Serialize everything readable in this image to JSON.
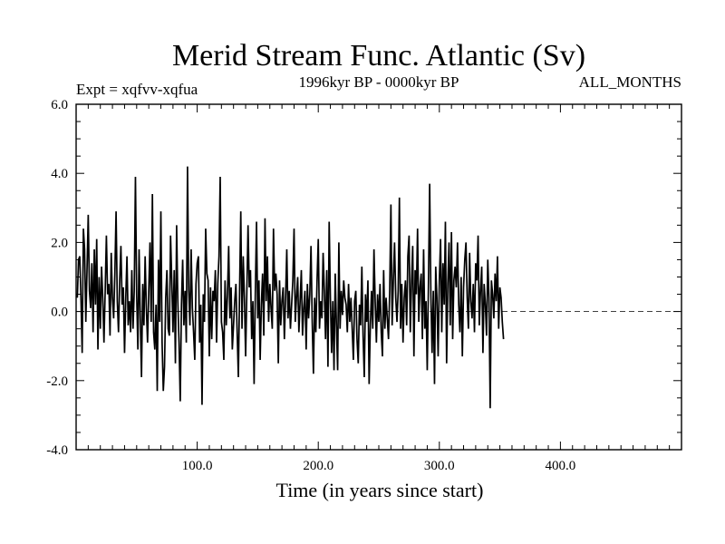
{
  "chart_data": {
    "type": "line",
    "title": "Merid Stream Func. Atlantic (Sv)",
    "subtitle": "1996kyr BP - 0000kyr BP",
    "left_note": "Expt = xqfvv-xqfua",
    "right_note": "ALL_MONTHS",
    "xlabel": "Time (in years since start)",
    "ylabel": "",
    "xlim": [
      0,
      500
    ],
    "ylim": [
      -4.0,
      6.0
    ],
    "xticks": [
      100,
      200,
      300,
      400
    ],
    "xtick_labels": [
      "100.0",
      "200.0",
      "300.0",
      "400.0"
    ],
    "yticks": [
      6,
      4,
      2,
      0,
      -2,
      -4
    ],
    "ytick_labels": [
      "6.0",
      "4.0",
      "2.0",
      "0.0",
      "-2.0",
      "-4.0"
    ],
    "reference_line": {
      "y": 0,
      "style": "dashed"
    },
    "series": [
      {
        "name": "xqfvv-xqfua",
        "x_start": 1,
        "x_step": 1,
        "values": [
          0.4,
          1.5,
          1.6,
          0.4,
          -1.2,
          2.4,
          1.8,
          -0.3,
          1.2,
          2.8,
          0.6,
          0.1,
          1.4,
          -0.6,
          1.8,
          0.2,
          2.1,
          -1.1,
          1.0,
          -0.5,
          1.3,
          0.4,
          -0.9,
          0.6,
          2.2,
          0.5,
          0.8,
          -0.7,
          1.7,
          0.4,
          -0.2,
          1.1,
          2.9,
          0.3,
          -0.6,
          0.9,
          1.9,
          0.2,
          0.7,
          -1.2,
          0.4,
          1.6,
          -0.4,
          0.3,
          -0.6,
          1.2,
          -0.5,
          0.6,
          3.9,
          0.5,
          -1.1,
          1.8,
          -0.2,
          -1.9,
          0.8,
          -0.4,
          1.6,
          0.1,
          -0.9,
          0.6,
          2.0,
          -0.3,
          3.4,
          -0.6,
          -1.1,
          0.2,
          -2.3,
          1.5,
          -0.3,
          2.9,
          -0.9,
          -2.3,
          -1.6,
          0.4,
          1.2,
          -0.5,
          -0.7,
          2.2,
          0.9,
          -0.6,
          1.2,
          -1.5,
          2.5,
          0.3,
          -0.9,
          -2.6,
          0.2,
          1.5,
          -0.4,
          0.6,
          -0.9,
          4.2,
          0.6,
          -0.4,
          1.8,
          0.1,
          -0.6,
          -1.4,
          0.8,
          1.4,
          1.6,
          -0.9,
          0.2,
          -2.7,
          0.5,
          -0.3,
          2.4,
          1.1,
          0.9,
          -1.3,
          0.7,
          -0.8,
          0.6,
          0.3,
          1.2,
          -0.9,
          0.8,
          1.6,
          3.9,
          -0.3,
          -0.6,
          -1.4,
          0.9,
          -0.4,
          0.5,
          1.9,
          -0.2,
          0.7,
          -1.1,
          -0.4,
          0.3,
          0.8,
          -0.6,
          -1.9,
          0.6,
          2.9,
          -0.5,
          1.6,
          0.4,
          -1.3,
          0.6,
          2.5,
          0.7,
          1.2,
          -0.8,
          0.3,
          -2.1,
          0.5,
          2.6,
          -0.2,
          0.9,
          -1.4,
          0.2,
          1.1,
          -0.7,
          2.7,
          0.3,
          1.6,
          -0.3,
          0.8,
          0.1,
          -0.5,
          2.4,
          0.6,
          1.1,
          0.5,
          -1.5,
          0.9,
          -0.4,
          0.3,
          0.7,
          -0.8,
          0.4,
          1.8,
          -0.2,
          0.6,
          -0.5,
          0.2,
          0.9,
          2.4,
          -0.3,
          0.4,
          1.0,
          -0.6,
          0.3,
          1.2,
          -0.7,
          0.1,
          0.6,
          -1.1,
          0.8,
          -0.2,
          0.5,
          1.9,
          -0.3,
          -1.8,
          0.4,
          -0.6,
          0.9,
          2.1,
          -0.5,
          0.3,
          -0.2,
          1.7,
          0.6,
          -0.8,
          1.2,
          -1.6,
          2.6,
          0.4,
          -1.2,
          0.3,
          -1.7,
          1.1,
          -0.4,
          -1.7,
          2.0,
          -0.5,
          0.6,
          -0.1,
          0.9,
          0.4,
          0.2,
          -0.6,
          0.8,
          -0.3,
          0.4,
          -0.5,
          -1.4,
          0.3,
          0.6,
          -0.8,
          -1.5,
          0.2,
          -0.4,
          1.3,
          -0.7,
          -1.9,
          0.5,
          -0.3,
          0.9,
          -2.1,
          -0.4,
          0.6,
          -0.5,
          1.8,
          0.3,
          -0.9,
          0.5,
          -0.3,
          0.8,
          -0.6,
          -1.3,
          1.2,
          -0.5,
          0.4,
          -0.2,
          -0.8,
          0.6,
          3.1,
          -0.4,
          0.9,
          2.0,
          0.4,
          -0.3,
          0.6,
          3.3,
          -0.5,
          0.8,
          -0.9,
          0.4,
          0.9,
          -0.4,
          1.6,
          2.2,
          -0.6,
          0.8,
          1.9,
          -1.3,
          1.2,
          0.5,
          2.4,
          -0.3,
          0.7,
          1.1,
          -0.8,
          1.8,
          -0.5,
          0.3,
          -1.7,
          0.8,
          3.7,
          0.5,
          -1.2,
          0.6,
          -2.1,
          1.3,
          0.4,
          -1.3,
          0.9,
          2.1,
          -0.6,
          1.4,
          0.2,
          2.6,
          -1.5,
          0.8,
          2.0,
          -0.4,
          2.3,
          -0.8,
          0.9,
          1.3,
          0.7,
          2.0,
          0.2,
          -0.6,
          1.0,
          -1.3,
          0.7,
          1.5,
          2.0,
          0.4,
          -0.5,
          1.7,
          0.3,
          -0.2,
          0.8,
          -0.6,
          1.4,
          0.9,
          2.2,
          -0.4,
          0.6,
          1.3,
          -1.2,
          0.8,
          0.2,
          -0.7,
          1.5,
          0.4,
          -2.8,
          0.9,
          0.5,
          -0.2,
          1.1,
          0.3,
          1.6,
          -0.5,
          0.7,
          0.4,
          -0.3,
          -0.8
        ]
      }
    ]
  }
}
